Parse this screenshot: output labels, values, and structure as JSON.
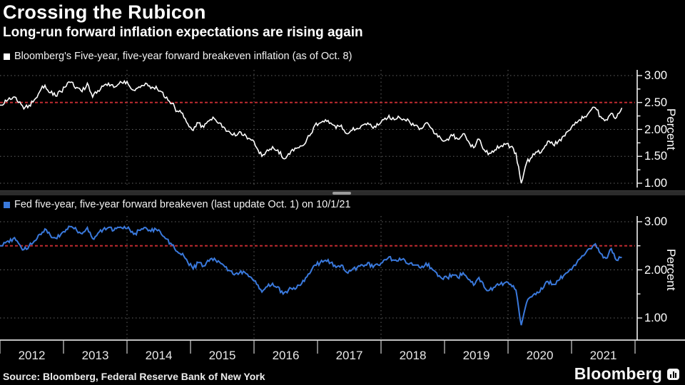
{
  "header": {
    "title": "Crossing the Rubicon",
    "subtitle": "Long-run forward inflation expectations are rising again"
  },
  "charts": [
    {
      "legend": "Bloomberg's Five-year, five-year forward breakeven inflation (as of Oct. 8)",
      "series_color": "#ffffff",
      "axis_label": "Percent",
      "y_axis_labels": [
        {
          "label": "3.00",
          "value": 3.0
        },
        {
          "label": "2.50",
          "value": 2.5
        },
        {
          "label": "2.00",
          "value": 2.0
        },
        {
          "label": "1.50",
          "value": 1.5
        },
        {
          "label": "1.00",
          "value": 1.0
        }
      ],
      "minor_tick_step": 0.25
    },
    {
      "legend": "Fed five-year, five-year forward breakeven (last update Oct. 1) on 10/1/21",
      "series_color": "#3a79dc",
      "axis_label": "Percent",
      "y_axis_labels": [
        {
          "label": "3.00",
          "value": 3.0
        },
        {
          "label": "2.00",
          "value": 2.0
        },
        {
          "label": "1.00",
          "value": 1.0
        }
      ],
      "minor_tick_step": 0.5
    }
  ],
  "x_axis": {
    "years": [
      "2012",
      "2013",
      "2014",
      "2015",
      "2016",
      "2017",
      "2018",
      "2019",
      "2020",
      "2021"
    ]
  },
  "footer": {
    "source": "Source: Bloomberg, Federal Reserve Bank of New York",
    "logo": "Bloomberg"
  },
  "colors": {
    "background": "#000000",
    "grid": "#636363",
    "reference_line": "#bf2b30",
    "axis": "#ffffff",
    "series_top": "#ffffff",
    "series_bottom": "#3a79dc"
  },
  "chart_data": [
    {
      "type": "line",
      "name": "Bloomberg's Five-year, five-year forward breakeven inflation",
      "color": "#ffffff",
      "x_start": "2012-01",
      "x_end": "2021-10",
      "frequency": "monthly",
      "ylabel": "Percent",
      "ylim": [
        0.9,
        3.15
      ],
      "yticks": [
        1.0,
        1.5,
        2.0,
        2.5,
        3.0
      ],
      "reference_line": 2.5,
      "grid": "dotted horizontal at ticks; dotted vertical at even-year boundaries",
      "legend_position": "above chart, left",
      "values": [
        2.45,
        2.55,
        2.6,
        2.5,
        2.38,
        2.45,
        2.55,
        2.7,
        2.82,
        2.68,
        2.62,
        2.7,
        2.8,
        2.88,
        2.78,
        2.7,
        2.86,
        2.6,
        2.72,
        2.8,
        2.86,
        2.78,
        2.85,
        2.9,
        2.8,
        2.72,
        2.78,
        2.86,
        2.76,
        2.8,
        2.7,
        2.6,
        2.48,
        2.34,
        2.3,
        2.1,
        1.98,
        2.12,
        2.04,
        2.16,
        2.2,
        2.12,
        2.02,
        1.94,
        1.88,
        1.95,
        1.88,
        1.8,
        1.66,
        1.5,
        1.62,
        1.68,
        1.62,
        1.46,
        1.55,
        1.6,
        1.66,
        1.72,
        1.88,
        2.08,
        2.12,
        2.18,
        2.12,
        2.02,
        2.08,
        1.92,
        1.98,
        2.02,
        2.08,
        2.12,
        2.02,
        2.08,
        2.18,
        2.26,
        2.18,
        2.22,
        2.18,
        2.12,
        2.08,
        2.02,
        2.12,
        2.02,
        1.92,
        1.8,
        1.82,
        1.88,
        1.82,
        1.92,
        1.78,
        1.66,
        1.82,
        1.62,
        1.56,
        1.62,
        1.68,
        1.72,
        1.68,
        1.56,
        1.0,
        1.38,
        1.48,
        1.58,
        1.62,
        1.78,
        1.72,
        1.78,
        1.88,
        1.98,
        2.08,
        2.18,
        2.24,
        2.34,
        2.4,
        2.24,
        2.18,
        2.3,
        2.22,
        2.4
      ]
    },
    {
      "type": "line",
      "name": "Fed five-year, five-year forward breakeven",
      "color": "#3a79dc",
      "x_start": "2012-01",
      "x_end": "2021-10",
      "frequency": "monthly",
      "ylabel": "Percent",
      "ylim": [
        0.55,
        3.15
      ],
      "yticks": [
        1.0,
        2.0,
        3.0
      ],
      "reference_line": 2.5,
      "grid": "dotted horizontal at labeled ticks; dotted vertical at even-year boundaries",
      "legend_position": "above chart, left",
      "values": [
        2.5,
        2.6,
        2.65,
        2.55,
        2.42,
        2.5,
        2.6,
        2.74,
        2.85,
        2.72,
        2.66,
        2.74,
        2.84,
        2.9,
        2.82,
        2.75,
        2.88,
        2.65,
        2.76,
        2.84,
        2.88,
        2.82,
        2.88,
        2.9,
        2.84,
        2.76,
        2.82,
        2.88,
        2.8,
        2.84,
        2.74,
        2.64,
        2.52,
        2.38,
        2.34,
        2.15,
        2.02,
        2.15,
        2.08,
        2.18,
        2.24,
        2.16,
        2.06,
        1.98,
        1.92,
        1.98,
        1.92,
        1.84,
        1.7,
        1.54,
        1.65,
        1.72,
        1.65,
        1.5,
        1.58,
        1.63,
        1.68,
        1.76,
        1.92,
        2.1,
        2.15,
        2.2,
        2.15,
        2.05,
        2.1,
        1.95,
        2.0,
        2.05,
        2.1,
        2.15,
        2.05,
        2.1,
        2.2,
        2.27,
        2.2,
        2.24,
        2.2,
        2.14,
        2.1,
        2.04,
        2.14,
        2.04,
        1.94,
        1.82,
        1.84,
        1.9,
        1.84,
        1.94,
        1.8,
        1.68,
        1.84,
        1.64,
        1.58,
        1.64,
        1.7,
        1.74,
        1.7,
        1.58,
        0.85,
        1.32,
        1.44,
        1.54,
        1.6,
        1.76,
        1.7,
        1.78,
        1.88,
        1.98,
        2.1,
        2.22,
        2.32,
        2.44,
        2.54,
        2.34,
        2.24,
        2.44,
        2.2,
        2.26
      ]
    }
  ]
}
